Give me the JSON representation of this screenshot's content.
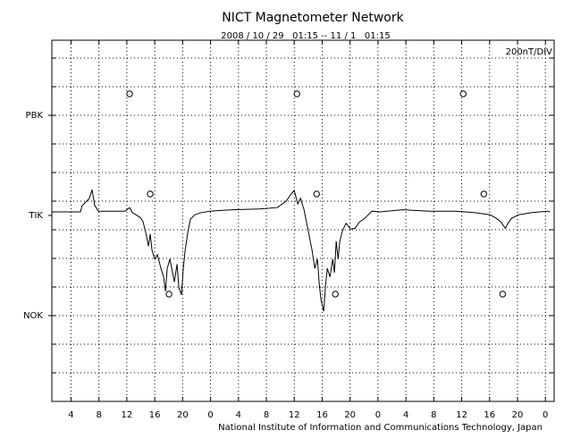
{
  "chart_data": {
    "type": "line",
    "title": "NICT Magnetometer Network",
    "subtitle": "2008 / 10 / 29   01:15 -- 11 / 1   01:15",
    "scale_label": "200nT/DIV",
    "footer": "National Institute of Information and Communications Technology, Japan",
    "color": "#000000",
    "x": [
      0,
      4.1,
      4.36,
      5.0,
      5.38,
      5.77,
      6.15,
      6.67,
      10.51,
      11.15,
      11.54,
      12.05,
      12.69,
      13.08,
      13.46,
      13.85,
      14.1,
      14.36,
      14.74,
      15.13,
      15.64,
      16.03,
      16.28,
      16.54,
      16.92,
      17.31,
      17.56,
      17.95,
      18.21,
      18.59,
      18.85,
      19.1,
      19.49,
      19.87,
      20.51,
      21.41,
      22.69,
      25.9,
      29.74,
      32.31,
      33.59,
      34.23,
      34.74,
      35.26,
      35.64,
      36.15,
      36.54,
      36.92,
      37.31,
      37.69,
      38.08,
      38.33,
      38.59,
      38.97,
      39.23,
      39.49,
      39.87,
      40.26,
      40.51,
      40.77,
      41.03,
      41.28,
      41.67,
      42.18,
      42.82,
      43.46,
      44.1,
      44.74,
      45.38,
      45.9,
      47.05,
      50.26,
      54.1,
      57.95,
      60.51,
      62.82,
      63.72,
      64.36,
      65.0,
      65.38,
      65.9,
      66.92,
      68.85,
      71.03,
      71.41
    ],
    "values": [
      25,
      25,
      70,
      100,
      120,
      180,
      70,
      30,
      30,
      55,
      20,
      5,
      -15,
      -45,
      -120,
      -215,
      -130,
      -245,
      -305,
      -275,
      -370,
      -430,
      -530,
      -370,
      -305,
      -400,
      -465,
      -340,
      -505,
      -555,
      -370,
      -245,
      -120,
      -25,
      5,
      20,
      30,
      40,
      45,
      55,
      100,
      145,
      175,
      80,
      120,
      40,
      -55,
      -150,
      -245,
      -370,
      -305,
      -480,
      -590,
      -670,
      -495,
      -370,
      -430,
      -305,
      -400,
      -180,
      -305,
      -180,
      -105,
      -55,
      -95,
      -90,
      -45,
      -25,
      5,
      30,
      25,
      40,
      30,
      30,
      20,
      5,
      -20,
      -45,
      -90,
      -55,
      -20,
      5,
      20,
      30,
      25
    ],
    "markers": {
      "x": [
        11.15,
        35.13,
        58.97,
        14.1,
        37.95,
        61.92,
        16.79,
        40.64,
        64.62
      ],
      "y": [
        850,
        850,
        850,
        150,
        150,
        150,
        -550,
        -550,
        -550
      ]
    },
    "xlim": [
      0,
      72
    ],
    "xticks": [
      {
        "value": 2.75,
        "label": "4"
      },
      {
        "value": 6.75,
        "label": "8"
      },
      {
        "value": 10.75,
        "label": "12"
      },
      {
        "value": 14.75,
        "label": "16"
      },
      {
        "value": 18.75,
        "label": "20"
      },
      {
        "value": 22.75,
        "label": "0"
      },
      {
        "value": 26.75,
        "label": "4"
      },
      {
        "value": 30.75,
        "label": "8"
      },
      {
        "value": 34.75,
        "label": "12"
      },
      {
        "value": 38.75,
        "label": "16"
      },
      {
        "value": 42.75,
        "label": "20"
      },
      {
        "value": 46.75,
        "label": "0"
      },
      {
        "value": 50.75,
        "label": "4"
      },
      {
        "value": 54.75,
        "label": "8"
      },
      {
        "value": 58.75,
        "label": "12"
      },
      {
        "value": 62.75,
        "label": "16"
      },
      {
        "value": 66.75,
        "label": "20"
      },
      {
        "value": 70.75,
        "label": "0"
      }
    ],
    "ylim": [
      -1300,
      1225
    ],
    "yticks": [
      {
        "value": 700,
        "label": "PBK"
      },
      {
        "value": 0,
        "label": "TIK"
      },
      {
        "value": -700,
        "label": "NOK"
      }
    ],
    "ygrid": [
      -1100,
      -900,
      -700,
      -500,
      -300,
      -100,
      100,
      300,
      500,
      700,
      900,
      1100
    ],
    "grid": true
  }
}
